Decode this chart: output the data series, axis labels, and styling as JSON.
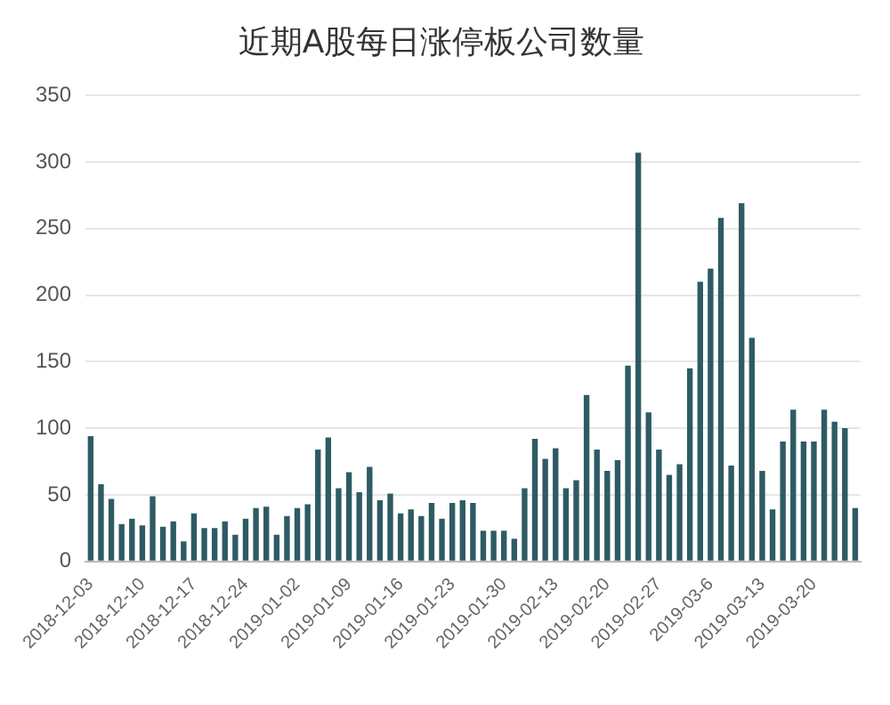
{
  "chart_data": {
    "type": "bar",
    "title": "近期A股每日涨停板公司数量",
    "categories": [
      "2018-12-03",
      null,
      null,
      null,
      null,
      "2018-12-10",
      null,
      null,
      null,
      null,
      "2018-12-17",
      null,
      null,
      null,
      null,
      "2018-12-24",
      null,
      null,
      null,
      null,
      "2019-01-02",
      null,
      null,
      null,
      null,
      "2019-01-09",
      null,
      null,
      null,
      null,
      "2019-01-16",
      null,
      null,
      null,
      null,
      "2019-01-23",
      null,
      null,
      null,
      null,
      "2019-01-30",
      null,
      null,
      null,
      null,
      "2019-02-13",
      null,
      null,
      null,
      null,
      "2019-02-20",
      null,
      null,
      null,
      null,
      "2019-02-27",
      null,
      null,
      null,
      null,
      "2019-03-6",
      null,
      null,
      null,
      null,
      "2019-03-13",
      null,
      null,
      null,
      null,
      "2019-03-20",
      null,
      null,
      null,
      null
    ],
    "values": [
      94,
      58,
      47,
      28,
      32,
      27,
      49,
      26,
      30,
      15,
      36,
      25,
      25,
      30,
      20,
      32,
      40,
      41,
      20,
      34,
      40,
      43,
      84,
      93,
      55,
      67,
      52,
      71,
      46,
      51,
      36,
      39,
      34,
      44,
      32,
      44,
      46,
      44,
      23,
      23,
      23,
      17,
      55,
      92,
      77,
      85,
      55,
      61,
      125,
      84,
      68,
      76,
      147,
      307,
      112,
      84,
      65,
      73,
      145,
      210,
      220,
      258,
      72,
      269,
      168,
      68,
      39,
      90,
      114,
      90,
      90,
      114,
      105,
      100,
      40
    ],
    "color": "#2e5b63",
    "ylim": [
      0,
      350
    ],
    "yticks": [
      0,
      50,
      100,
      150,
      200,
      250,
      300,
      350
    ],
    "grid": "y",
    "legend": false
  }
}
